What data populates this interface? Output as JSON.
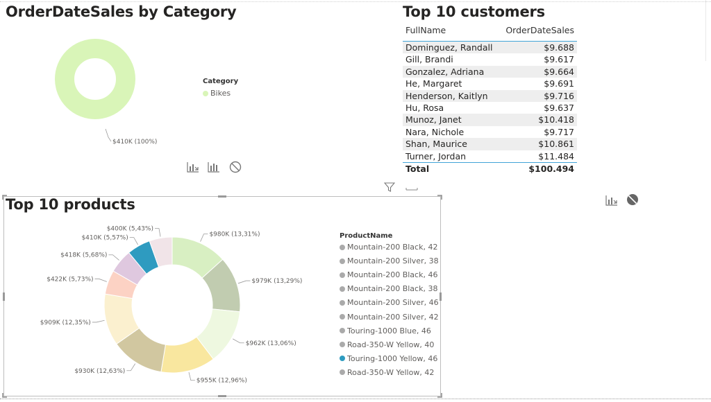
{
  "category_chart": {
    "title": "OrderDateSales by Category",
    "data_label": "$410K (100%)",
    "legend_title": "Category",
    "legend_items": [
      {
        "label": "Bikes",
        "color": "#d9f5b8"
      }
    ],
    "color": "#d9f5b8"
  },
  "customers_table": {
    "title": "Top 10 customers",
    "columns": [
      "FullName",
      "OrderDateSales"
    ],
    "rows": [
      [
        "Dominguez, Randall",
        "$9.688"
      ],
      [
        "Gill, Brandi",
        "$9.617"
      ],
      [
        "Gonzalez, Adriana",
        "$9.664"
      ],
      [
        "He, Margaret",
        "$9.691"
      ],
      [
        "Henderson, Kaitlyn",
        "$9.716"
      ],
      [
        "Hu, Rosa",
        "$9.637"
      ],
      [
        "Munoz, Janet",
        "$10.418"
      ],
      [
        "Nara, Nichole",
        "$9.717"
      ],
      [
        "Shan, Maurice",
        "$10.861"
      ],
      [
        "Turner, Jordan",
        "$11.484"
      ]
    ],
    "total_label": "Total",
    "total_value": "$100.494"
  },
  "products_chart": {
    "title": "Top 10 products",
    "legend_title": "ProductName",
    "slices": [
      {
        "value": 980,
        "label": "$980K (13,31%)",
        "color": "#d8efc2"
      },
      {
        "value": 979,
        "label": "$979K (13,29%)",
        "color": "#c1ccb0"
      },
      {
        "value": 962,
        "label": "$962K (13,06%)",
        "color": "#eef8e0"
      },
      {
        "value": 955,
        "label": "$955K (12,96%)",
        "color": "#f9e79f"
      },
      {
        "value": 930,
        "label": "$930K (12,63%)",
        "color": "#d1c7a0"
      },
      {
        "value": 909,
        "label": "$909K (12,35%)",
        "color": "#fbf0cf"
      },
      {
        "value": 422,
        "label": "$422K (5,73%)",
        "color": "#fcd2c4"
      },
      {
        "value": 418,
        "label": "$418K (5,68%)",
        "color": "#dfc8df"
      },
      {
        "value": 410,
        "label": "$410K (5,57%)",
        "color": "#2e9bc0"
      },
      {
        "value": 400,
        "label": "$400K (5,43%)",
        "color": "#f1e4e8"
      }
    ],
    "legend_items": [
      {
        "label": "Mountain-200 Black, 42",
        "color": "#aaaaaa"
      },
      {
        "label": "Mountain-200 Silver, 38",
        "color": "#aaaaaa"
      },
      {
        "label": "Mountain-200 Black, 46",
        "color": "#aaaaaa"
      },
      {
        "label": "Mountain-200 Black, 38",
        "color": "#aaaaaa"
      },
      {
        "label": "Mountain-200 Silver, 46",
        "color": "#aaaaaa"
      },
      {
        "label": "Mountain-200 Silver, 42",
        "color": "#aaaaaa"
      },
      {
        "label": "Touring-1000 Blue, 46",
        "color": "#aaaaaa"
      },
      {
        "label": "Road-350-W Yellow, 40",
        "color": "#aaaaaa"
      },
      {
        "label": "Touring-1000 Yellow, 46",
        "color": "#2e9bc0"
      },
      {
        "label": "Road-350-W Yellow, 42",
        "color": "#aaaaaa"
      }
    ]
  },
  "icons": [
    "drill-down-icon",
    "column-chart-icon",
    "no-filter-icon",
    "filter-icon",
    "more-options-icon"
  ]
}
